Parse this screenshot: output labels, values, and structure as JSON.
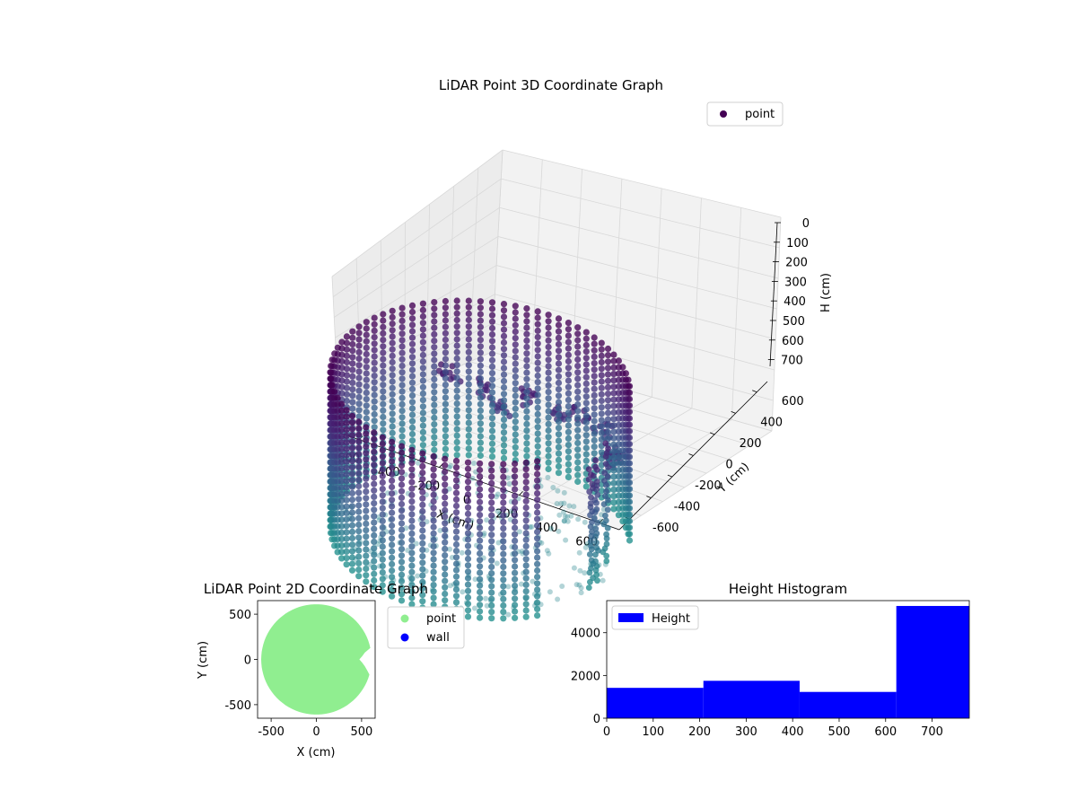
{
  "chart_data": [
    {
      "type": "scatter",
      "projection": "3d",
      "title": "LiDAR Point 3D Coordinate Graph",
      "xlabel": "X (cm)",
      "ylabel": "Y (cm)",
      "zlabel": "H (cm)",
      "xlim": [
        -700,
        700
      ],
      "ylim": [
        -700,
        700
      ],
      "zlim": [
        780,
        0
      ],
      "z_axis_inverted": true,
      "xticks": [
        -600,
        -400,
        -200,
        0,
        200,
        400,
        600
      ],
      "yticks": [
        -600,
        -400,
        -200,
        0,
        200,
        400,
        600
      ],
      "zticks": [
        0,
        100,
        200,
        300,
        400,
        500,
        600,
        700
      ],
      "legend": {
        "entries": [
          "point"
        ],
        "placement": "upper-right"
      },
      "colormap": "viridis (dark at top, teal at bottom)",
      "series": [
        {
          "name": "point",
          "shape": "cylindrical wall",
          "radius": 650,
          "height_range": [
            0,
            720
          ],
          "wall_gap_angle_deg": [
            -40,
            30
          ],
          "extra_structures": "beam points near H 150-300 and vertical columns near X 500-600"
        }
      ],
      "grid": true
    },
    {
      "type": "scatter",
      "title": "LiDAR Point 2D Coordinate Graph",
      "xlabel": "X (cm)",
      "ylabel": "Y (cm)",
      "xlim": [
        -650,
        650
      ],
      "ylim": [
        -650,
        650
      ],
      "xticks": [
        -500,
        0,
        500
      ],
      "yticks": [
        -500,
        0,
        500
      ],
      "legend": {
        "entries": [
          "point",
          "wall"
        ],
        "placement": "outside-right"
      },
      "series": [
        {
          "name": "point",
          "color": "#90ee90",
          "shape": "filled disk",
          "radius": 610,
          "center": [
            0,
            0
          ]
        },
        {
          "name": "wall",
          "color": "#0000ff"
        }
      ]
    },
    {
      "type": "bar",
      "subtype": "histogram",
      "title": "Height Histogram",
      "xlabel": "",
      "ylabel": "",
      "xlim": [
        0,
        780
      ],
      "ylim": [
        0,
        5500
      ],
      "xticks": [
        0,
        100,
        200,
        300,
        400,
        500,
        600,
        700
      ],
      "yticks": [
        0,
        2000,
        4000
      ],
      "legend": {
        "entries": [
          "Height"
        ],
        "placement": "upper-left"
      },
      "series": [
        {
          "name": "Height",
          "color": "#0000ff",
          "bins": [
            {
              "x0": 0,
              "x1": 208,
              "value": 1420
            },
            {
              "x0": 208,
              "x1": 415,
              "value": 1750
            },
            {
              "x0": 415,
              "x1": 623,
              "value": 1230
            },
            {
              "x0": 623,
              "x1": 780,
              "value": 5250
            }
          ]
        }
      ]
    }
  ]
}
